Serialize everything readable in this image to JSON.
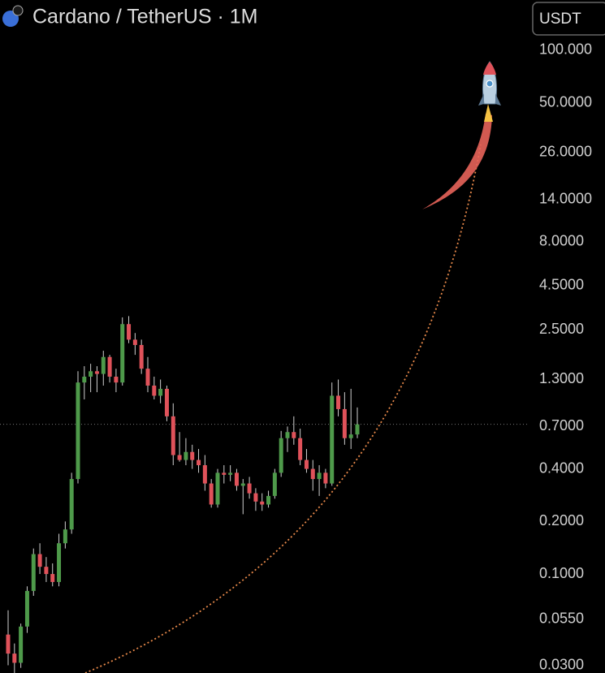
{
  "chart_data": {
    "type": "candlestick",
    "title": "Cardano / TetherUS · 1M",
    "currency": "USDT",
    "log_scale": true,
    "up_color": "#4e9a4a",
    "down_color": "#e0525a",
    "ylim": [
      0.0271,
      194
    ],
    "yticks": [
      {
        "value": 100,
        "label": "100.000"
      },
      {
        "value": 50,
        "label": "50.0000"
      },
      {
        "value": 26,
        "label": "26.0000"
      },
      {
        "value": 14,
        "label": "14.0000"
      },
      {
        "value": 8,
        "label": "8.0000"
      },
      {
        "value": 4.5,
        "label": "4.5000"
      },
      {
        "value": 2.5,
        "label": "2.5000"
      },
      {
        "value": 1.3,
        "label": "1.3000"
      },
      {
        "value": 0.7,
        "label": "0.7000"
      },
      {
        "value": 0.4,
        "label": "0.4000"
      },
      {
        "value": 0.2,
        "label": "0.2000"
      },
      {
        "value": 0.1,
        "label": "0.1000"
      },
      {
        "value": 0.055,
        "label": "0.0550"
      },
      {
        "value": 0.03,
        "label": "0.0300"
      }
    ],
    "open": [
      0.045,
      0.035,
      0.031,
      0.05,
      0.08,
      0.13,
      0.11,
      0.1,
      0.09,
      0.15,
      0.18,
      0.35,
      1.25,
      1.35,
      1.45,
      1.4,
      1.75,
      1.35,
      1.25,
      2.7,
      2.2,
      2.05,
      1.5,
      1.2,
      1.05,
      1.15,
      0.8,
      0.48,
      0.45,
      0.5,
      0.45,
      0.42,
      0.33,
      0.25,
      0.38,
      0.37,
      0.38,
      0.32,
      0.33,
      0.29,
      0.26,
      0.25,
      0.28,
      0.38,
      0.6,
      0.65,
      0.6,
      0.45,
      0.4,
      0.35,
      0.38,
      0.33,
      1.05,
      0.88,
      0.6,
      0.63
    ],
    "high": [
      0.062,
      0.04,
      0.052,
      0.085,
      0.14,
      0.15,
      0.125,
      0.115,
      0.17,
      0.2,
      0.38,
      1.45,
      1.55,
      1.6,
      1.55,
      1.9,
      1.8,
      1.5,
      2.95,
      3.0,
      2.4,
      2.2,
      1.75,
      1.35,
      1.3,
      1.2,
      0.95,
      0.65,
      0.6,
      0.55,
      0.52,
      0.48,
      0.35,
      0.4,
      0.42,
      0.42,
      0.4,
      0.35,
      0.36,
      0.31,
      0.29,
      0.3,
      0.4,
      0.66,
      0.7,
      0.8,
      0.68,
      0.52,
      0.45,
      0.42,
      0.4,
      1.25,
      1.3,
      1.1,
      1.15,
      0.9
    ],
    "low": [
      0.03,
      0.027,
      0.029,
      0.046,
      0.075,
      0.1,
      0.09,
      0.085,
      0.085,
      0.14,
      0.17,
      0.33,
      1.0,
      1.1,
      1.1,
      1.2,
      1.25,
      1.1,
      1.2,
      2.1,
      1.8,
      1.4,
      1.1,
      1.0,
      0.95,
      0.75,
      0.42,
      0.44,
      0.42,
      0.4,
      0.38,
      0.3,
      0.24,
      0.24,
      0.33,
      0.34,
      0.3,
      0.22,
      0.27,
      0.23,
      0.23,
      0.24,
      0.27,
      0.36,
      0.5,
      0.55,
      0.42,
      0.38,
      0.3,
      0.28,
      0.31,
      0.32,
      0.8,
      0.55,
      0.52,
      0.6
    ],
    "close": [
      0.035,
      0.031,
      0.05,
      0.08,
      0.13,
      0.11,
      0.1,
      0.09,
      0.15,
      0.18,
      0.35,
      1.25,
      1.35,
      1.45,
      1.4,
      1.75,
      1.35,
      1.25,
      2.7,
      2.2,
      2.05,
      1.5,
      1.2,
      1.05,
      1.15,
      0.8,
      0.48,
      0.45,
      0.5,
      0.45,
      0.42,
      0.33,
      0.25,
      0.38,
      0.37,
      0.38,
      0.32,
      0.33,
      0.29,
      0.26,
      0.25,
      0.28,
      0.38,
      0.6,
      0.65,
      0.6,
      0.45,
      0.4,
      0.35,
      0.38,
      0.33,
      1.05,
      0.88,
      0.6,
      0.63,
      0.72
    ]
  }
}
